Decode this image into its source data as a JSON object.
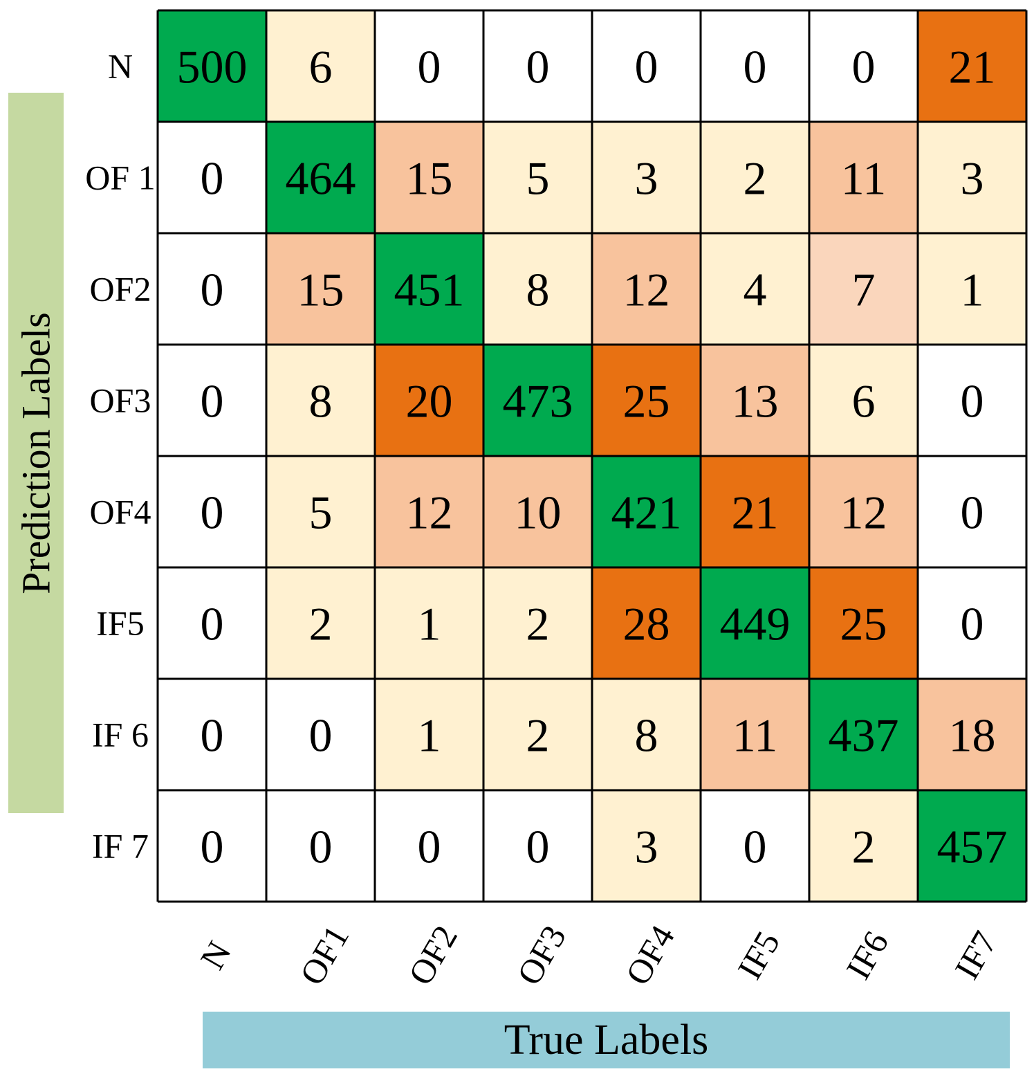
{
  "chart_data": {
    "type": "heatmap",
    "title": "",
    "xlabel": "True Labels",
    "ylabel": "Prediction Labels",
    "row_labels": [
      "N",
      "OF 1",
      "OF2",
      "OF3",
      "OF4",
      "IF5",
      "IF 6",
      "IF 7"
    ],
    "col_labels": [
      "N",
      "OF1",
      "OF2",
      "OF3",
      "OF4",
      "IF5",
      "IF6",
      "IF7"
    ],
    "values": [
      [
        500,
        6,
        0,
        0,
        0,
        0,
        0,
        21
      ],
      [
        0,
        464,
        15,
        5,
        3,
        2,
        11,
        3
      ],
      [
        0,
        15,
        451,
        8,
        12,
        4,
        7,
        1
      ],
      [
        0,
        8,
        20,
        473,
        25,
        13,
        6,
        0
      ],
      [
        0,
        5,
        12,
        10,
        421,
        21,
        12,
        0
      ],
      [
        0,
        2,
        1,
        2,
        28,
        449,
        25,
        0
      ],
      [
        0,
        0,
        1,
        2,
        8,
        11,
        437,
        18
      ],
      [
        0,
        0,
        0,
        0,
        3,
        0,
        2,
        457
      ]
    ],
    "colors": {
      "diagonal": "#00aa4f",
      "zero": "#ffffff",
      "low": "#fff1d1",
      "mid_light": "#fad6bc",
      "mid": "#f8c39d",
      "high": "#e87112",
      "grid": "#000000",
      "ylabel_box": "#c5d9a1",
      "xlabel_box": "#94ccd8"
    }
  }
}
